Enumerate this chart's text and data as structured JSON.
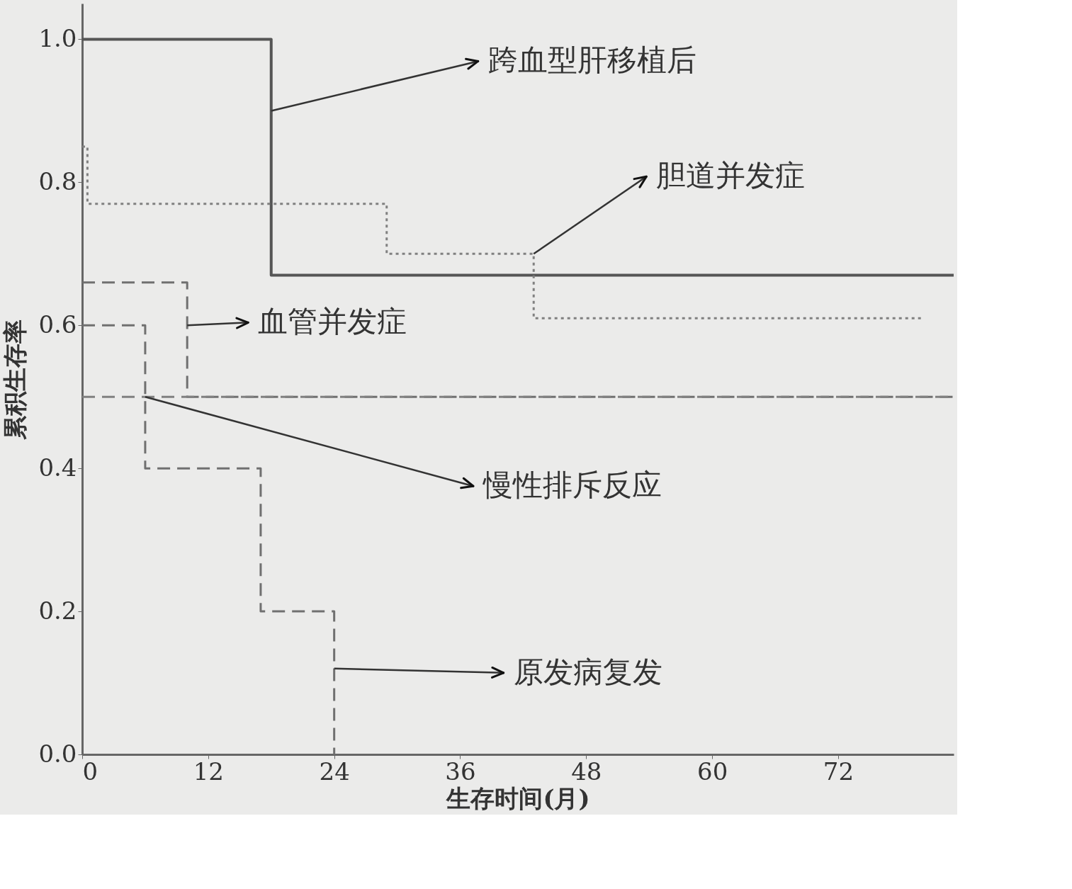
{
  "chart_data": {
    "type": "step",
    "xlabel": "生存时间(月)",
    "ylabel": "累积生存率",
    "xlim": [
      0,
      83
    ],
    "xticks": [
      0,
      12,
      24,
      36,
      48,
      60,
      72
    ],
    "ylim": [
      0,
      1.05
    ],
    "yticks": [
      {
        "value": 0,
        "label": "0.0"
      },
      {
        "value": 0.2,
        "label": "0.2"
      },
      {
        "value": 0.4,
        "label": "0.4"
      },
      {
        "value": 0.6,
        "label": "0.6"
      },
      {
        "value": 0.8,
        "label": "0.8"
      },
      {
        "value": 1,
        "label": "1.0"
      }
    ],
    "grid": false,
    "marker": "none",
    "series": [
      {
        "color": "#555555",
        "line_style": "solid",
        "x": [
          0,
          18,
          83
        ],
        "values": [
          1.0,
          0.67,
          0.67
        ]
      },
      {
        "color": "#808080",
        "line_style": "dotted",
        "x": [
          0,
          0.5,
          29,
          43,
          80
        ],
        "values": [
          0.85,
          0.77,
          0.7,
          0.61,
          0.61
        ]
      },
      {
        "color": "#707070",
        "line_style": "dashed",
        "x": [
          0,
          10,
          83
        ],
        "values": [
          0.66,
          0.5,
          0.5
        ]
      },
      {
        "color": "#808080",
        "line_style": "dashed",
        "x": [
          0,
          83
        ],
        "values": [
          0.5,
          0.5
        ]
      },
      {
        "color": "#707070",
        "line_style": "dashed",
        "x": [
          0,
          6,
          17,
          24
        ],
        "values": [
          0.6,
          0.4,
          0.2,
          0.0
        ]
      }
    ],
    "annotations": [
      {
        "text": "跨血型肝移植后",
        "x": 18,
        "y": 0.9
      },
      {
        "text": "胆道并发症",
        "x": 43,
        "y": 0.7
      },
      {
        "text": "血管并发症",
        "x": 10,
        "y": 0.6
      },
      {
        "text": "慢性排斥反应",
        "x": 6,
        "y": 0.5
      },
      {
        "text": "原发病复发",
        "x": 24,
        "y": 0.12
      }
    ]
  }
}
